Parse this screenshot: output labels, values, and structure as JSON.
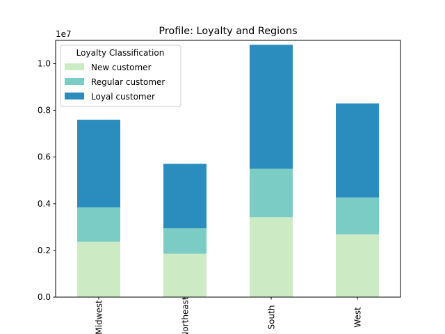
{
  "chart_data": {
    "type": "bar",
    "stacked": true,
    "title": "Profile: Loyalty and Regions",
    "xlabel": "",
    "ylabel": "",
    "y_scale_label": "1e7",
    "categories": [
      "Midwest",
      "Northeast",
      "South",
      "West"
    ],
    "ylim": [
      0,
      1.1
    ],
    "yticks": [
      0.0,
      0.2,
      0.4,
      0.6,
      0.8,
      1.0
    ],
    "ytick_labels": [
      "0.0",
      "0.2",
      "0.4",
      "0.6",
      "0.8",
      "1.0"
    ],
    "grid": false,
    "legend": {
      "title": "Loyalty Classification",
      "placement": "top-left"
    },
    "series": [
      {
        "name": "New customer",
        "color": "#ccebc5",
        "values": [
          0.237,
          0.186,
          0.342,
          0.269
        ]
      },
      {
        "name": "Regular customer",
        "color": "#7bccc4",
        "values": [
          0.147,
          0.109,
          0.208,
          0.158
        ]
      },
      {
        "name": "Loyal customer",
        "color": "#2b8cbe",
        "values": [
          0.376,
          0.276,
          0.531,
          0.403
        ]
      }
    ]
  }
}
